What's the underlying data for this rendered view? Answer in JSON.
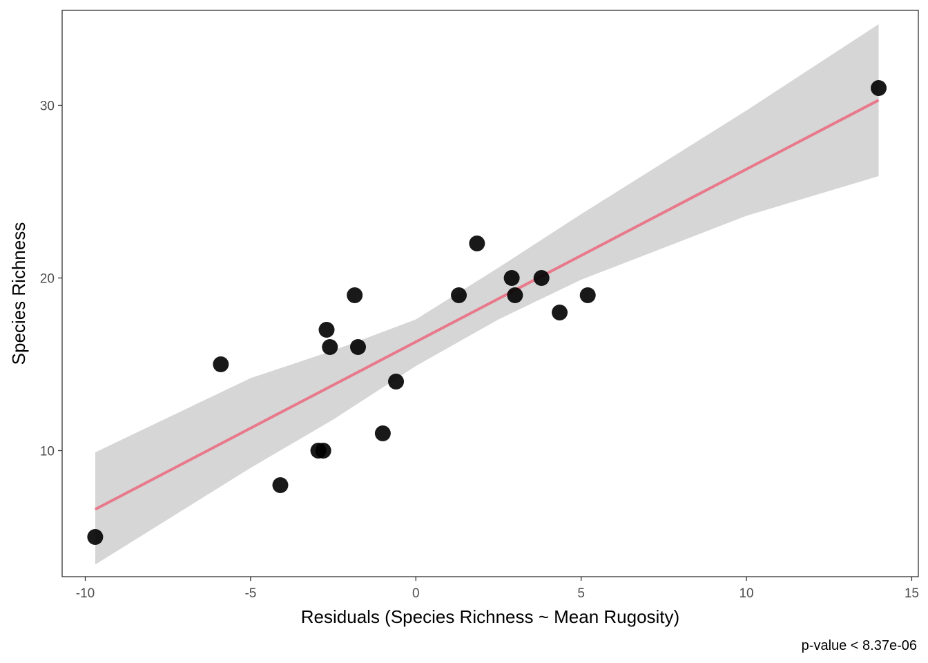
{
  "chart_data": {
    "type": "scatter",
    "xlabel": "Residuals (Species Richness ~ Mean Rugosity)",
    "ylabel": "Species Richness",
    "caption": "p-value < 8.37e-06",
    "xlim": [
      -10.7,
      15.2
    ],
    "ylim": [
      2.7,
      35.5
    ],
    "x_ticks": [
      {
        "value": -10,
        "label": "-10"
      },
      {
        "value": -5,
        "label": "-5"
      },
      {
        "value": 0,
        "label": "0"
      },
      {
        "value": 5,
        "label": "5"
      },
      {
        "value": 10,
        "label": "10"
      },
      {
        "value": 15,
        "label": "15"
      }
    ],
    "y_ticks": [
      {
        "value": 10,
        "label": "10"
      },
      {
        "value": 20,
        "label": "20"
      },
      {
        "value": 30,
        "label": "30"
      }
    ],
    "grid": false,
    "colors": {
      "points": "#000000",
      "fit_line": "#e8798b",
      "confidence_band": "#d6d6d6",
      "panel_border": "#333333"
    },
    "points": [
      {
        "x": -9.7,
        "y": 5
      },
      {
        "x": -5.9,
        "y": 15
      },
      {
        "x": -4.1,
        "y": 8
      },
      {
        "x": -2.95,
        "y": 10
      },
      {
        "x": -2.8,
        "y": 10
      },
      {
        "x": -2.7,
        "y": 17
      },
      {
        "x": -2.6,
        "y": 16
      },
      {
        "x": -1.85,
        "y": 19
      },
      {
        "x": -1.75,
        "y": 16
      },
      {
        "x": -1.0,
        "y": 11
      },
      {
        "x": -0.6,
        "y": 14
      },
      {
        "x": 1.3,
        "y": 19
      },
      {
        "x": 1.85,
        "y": 22
      },
      {
        "x": 2.9,
        "y": 20
      },
      {
        "x": 3.0,
        "y": 19
      },
      {
        "x": 3.8,
        "y": 20
      },
      {
        "x": 4.35,
        "y": 18
      },
      {
        "x": 5.2,
        "y": 19
      },
      {
        "x": 14.0,
        "y": 31
      }
    ],
    "fit_line": {
      "x": [
        -9.7,
        14.0
      ],
      "y": [
        6.6,
        30.3
      ]
    },
    "confidence_band": {
      "x": [
        -9.7,
        -5.0,
        -2.5,
        0.0,
        2.5,
        5.0,
        10.0,
        14.0
      ],
      "lower": [
        3.4,
        9.0,
        11.8,
        14.9,
        17.6,
        19.9,
        23.6,
        25.9
      ],
      "upper": [
        9.9,
        14.2,
        15.8,
        17.6,
        20.6,
        23.7,
        29.7,
        34.7
      ]
    }
  }
}
